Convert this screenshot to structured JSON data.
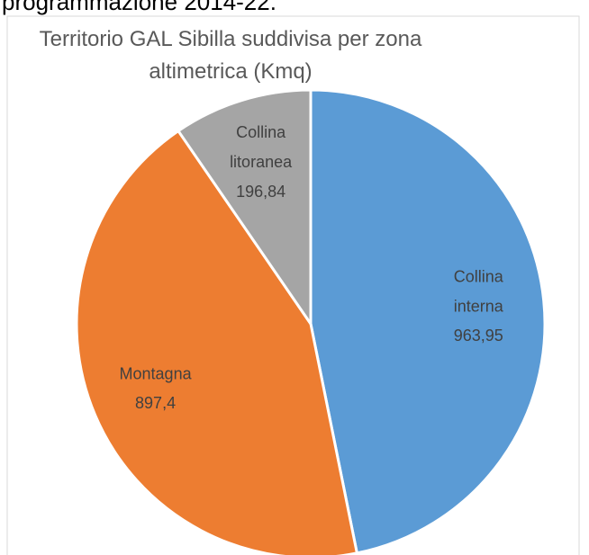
{
  "header_text": "programmazione 2014-22.",
  "chart_data": {
    "type": "pie",
    "title": "Territorio GAL Sibilla suddivisa per zona altimetrica (Kmq)",
    "categories": [
      "Collina interna",
      "Montagna",
      "Collina litoranea"
    ],
    "values": [
      963.95,
      897.4,
      196.84
    ],
    "value_labels": [
      "963,95",
      "897,4",
      "196,84"
    ],
    "colors": [
      "#5b9bd5",
      "#ed7d31",
      "#a5a5a5"
    ]
  }
}
